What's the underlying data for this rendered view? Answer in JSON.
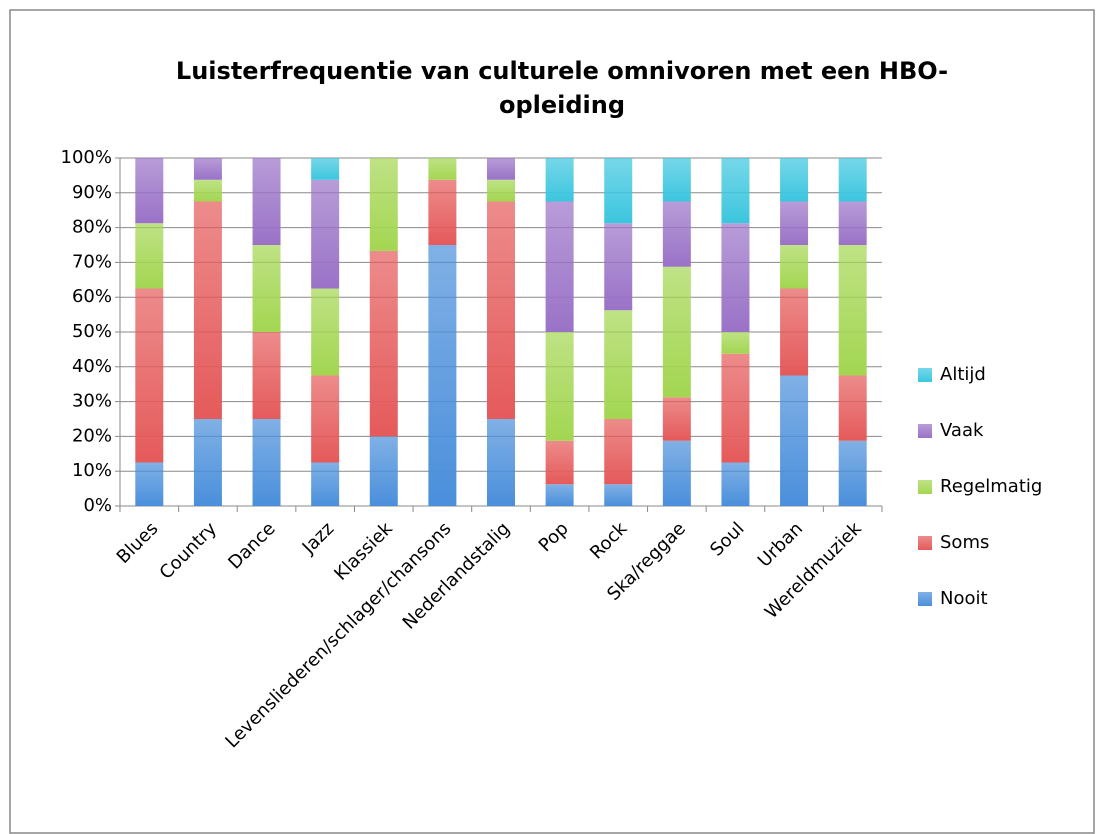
{
  "chart_data": {
    "type": "stacked_bar",
    "title": [
      "Luisterfrequentie van culturele omnivoren met een HBO-",
      "opleiding"
    ],
    "categories": [
      "Blues",
      "Country",
      "Dance",
      "Jazz",
      "Klassiek",
      "Levensliederen/schlager/chansons",
      "Nederlandstalig",
      "Pop",
      "Rock",
      "Ska/reggae",
      "Soul",
      "Urban",
      "Wereldmuziek"
    ],
    "series": [
      {
        "name": "Nooit",
        "color": "#4a8fdb",
        "values": [
          12.5,
          25,
          25,
          12.5,
          20,
          75,
          25,
          6.25,
          6.25,
          18.75,
          12.5,
          37.5,
          18.75
        ]
      },
      {
        "name": "Soms",
        "color": "#e55a5a",
        "values": [
          50,
          62.5,
          25,
          25,
          53.3,
          18.75,
          62.5,
          12.5,
          18.75,
          12.5,
          31.25,
          25,
          18.75
        ]
      },
      {
        "name": "Regelmatig",
        "color": "#a3d651",
        "values": [
          18.75,
          6.25,
          25,
          25,
          26.7,
          6.25,
          6.25,
          31.25,
          31.25,
          37.5,
          6.25,
          12.5,
          37.5
        ]
      },
      {
        "name": "Vaak",
        "color": "#9a72c7",
        "values": [
          18.75,
          6.25,
          25,
          31.25,
          0,
          0,
          6.25,
          37.5,
          25,
          18.75,
          31.25,
          12.5,
          12.5
        ]
      },
      {
        "name": "Altijd",
        "color": "#3cc6df",
        "values": [
          0,
          0,
          0,
          6.25,
          0,
          0,
          0,
          12.5,
          18.75,
          12.5,
          18.75,
          12.5,
          12.5
        ]
      }
    ],
    "ylim": [
      0,
      100
    ],
    "yticks": [
      {
        "value": 0,
        "label": "0%"
      },
      {
        "value": 10,
        "label": "10%"
      },
      {
        "value": 20,
        "label": "20%"
      },
      {
        "value": 30,
        "label": "30%"
      },
      {
        "value": 40,
        "label": "40%"
      },
      {
        "value": 50,
        "label": "50%"
      },
      {
        "value": 60,
        "label": "60%"
      },
      {
        "value": 70,
        "label": "70%"
      },
      {
        "value": 80,
        "label": "80%"
      },
      {
        "value": 90,
        "label": "90%"
      },
      {
        "value": 100,
        "label": "100%"
      }
    ],
    "grid": true,
    "legend": "right"
  }
}
